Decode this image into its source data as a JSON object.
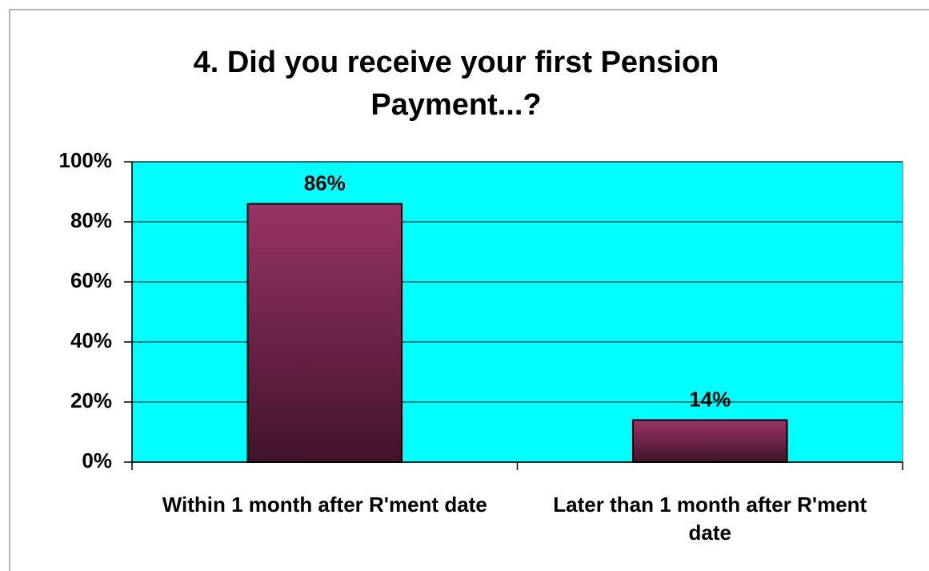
{
  "chart_data": {
    "type": "bar",
    "title": "4.  Did you receive your first Pension Payment...?",
    "categories": [
      "Within 1 month after R'ment date",
      "Later than 1 month after R'ment date"
    ],
    "values": [
      86,
      14
    ],
    "value_labels": [
      "86%",
      "14%"
    ],
    "color": "#993366",
    "ylim": [
      0,
      100
    ],
    "yticks": [
      {
        "value": 0,
        "label": "0%"
      },
      {
        "value": 20,
        "label": "20%"
      },
      {
        "value": 40,
        "label": "40%"
      },
      {
        "value": 60,
        "label": "60%"
      },
      {
        "value": 80,
        "label": "80%"
      },
      {
        "value": 100,
        "label": "100%"
      }
    ],
    "grid": true,
    "plot_background": "#00ffff"
  }
}
